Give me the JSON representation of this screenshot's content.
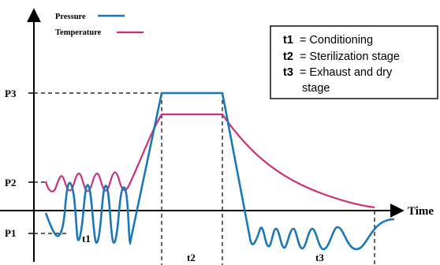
{
  "diagram": {
    "legend": {
      "pressure_label": "Pressure",
      "temperature_label": "Temperature"
    },
    "axis": {
      "x_label": "Time",
      "y_ticks": [
        "P3",
        "P2",
        "P1"
      ]
    },
    "stages": {
      "t1": "t1",
      "t2": "t2",
      "t3": "t3"
    },
    "info_box": {
      "lines": [
        {
          "key": "t1",
          "text": "= Conditioning"
        },
        {
          "key": "t2",
          "text": "= Sterilization stage"
        },
        {
          "key": "t3",
          "text": "= Exhaust and dry"
        },
        {
          "key": "",
          "text": "stage"
        }
      ]
    },
    "colors": {
      "pressure": "#1b78b8",
      "temperature": "#cc2f7a",
      "axis": "#000000"
    }
  }
}
